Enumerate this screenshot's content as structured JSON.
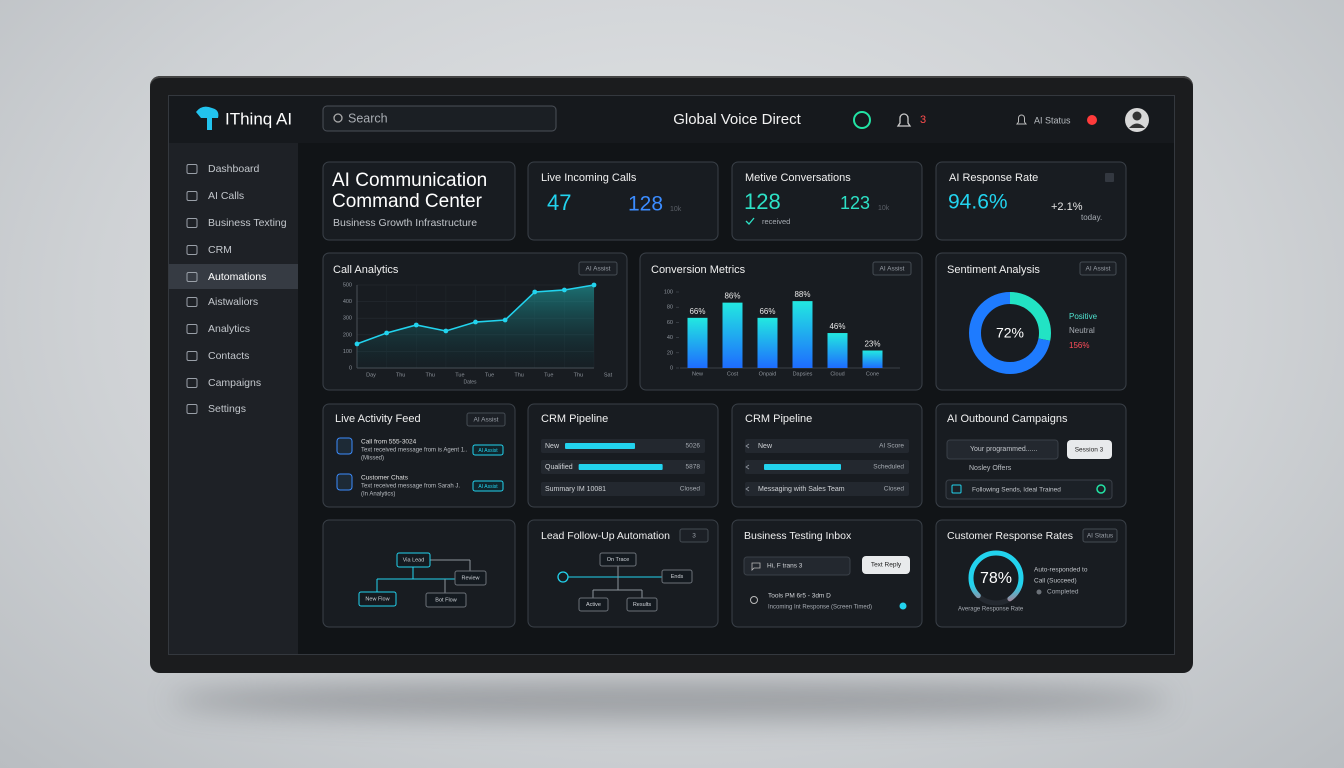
{
  "header": {
    "brand": "IThinq AI",
    "search": "Search",
    "title": "Global Voice Direct",
    "alerts": "3",
    "status": "AI Status"
  },
  "sidebar": {
    "items": [
      "Dashboard",
      "AI Calls",
      "Business Texting",
      "CRM",
      "Automations",
      "Aistwaliors",
      "Analytics",
      "Contacts",
      "Campaigns",
      "Settings"
    ],
    "active": 4
  },
  "hero": {
    "title": "AI Communication Command Center",
    "subtitle": "Business Growth Infrastructure"
  },
  "stats": [
    {
      "title": "Live Incoming Calls",
      "value": "47",
      "value2": "128",
      "note": "10k"
    },
    {
      "title": "Metive Conversations",
      "value": "128",
      "caption": "received",
      "value2": "123",
      "note": "10k"
    },
    {
      "title": "AI Response Rate",
      "value": "94.6%",
      "value2": "+2.1%",
      "note": "today."
    }
  ],
  "call_analytics": {
    "title": "Call Analytics",
    "badge": "AI Assist",
    "type": "line",
    "color": "#22d3ee",
    "categories": [
      "Day",
      "Thu",
      "Thu",
      "Tue",
      "Tue",
      "Thu",
      "Tue",
      "Thu",
      "Sat"
    ],
    "values": [
      145,
      211,
      259,
      223,
      277,
      289,
      458,
      470,
      500
    ],
    "ylim": [
      0,
      500
    ],
    "yticks": [
      0,
      100,
      200,
      300,
      400,
      500
    ],
    "xlabel": "Dates",
    "grid": true
  },
  "conversion": {
    "title": "Conversion Metrics",
    "badge": "AI Assist",
    "type": "bar",
    "categories": [
      "New",
      "Cost",
      "Onpaid",
      "Dapsies",
      "Cloud",
      "Cone"
    ],
    "values": [
      66,
      86,
      66,
      88,
      46,
      23
    ],
    "value_labels": [
      "66%",
      "86%",
      "66%",
      "88%",
      "46%",
      "23%"
    ],
    "ylim": [
      0,
      100
    ],
    "yticks": [
      0,
      20,
      40,
      60,
      80,
      100
    ]
  },
  "sentiment": {
    "title": "Sentiment Analysis",
    "badge": "AI Assist",
    "type": "pie",
    "categories": [
      "Positive",
      "Neutral"
    ],
    "values": [
      72,
      28
    ],
    "colors": [
      "#1e7bff",
      "#22e3c4"
    ],
    "center": "72%",
    "note": "156%"
  },
  "feed": {
    "title": "Live Activity Feed",
    "badge": "AI Assist",
    "items": [
      {
        "title": "Call from 555-3024",
        "text": "Text received message from is Agent 1..",
        "sub": "(Missed)",
        "tag": "AI Assist"
      },
      {
        "title": "Customer Chats",
        "text": "Text received message from Sarah J.",
        "sub": "(In Analytics)",
        "tag": "AI Assist"
      }
    ]
  },
  "pipelines": [
    {
      "title": "CRM Pipeline",
      "rows": [
        {
          "label": "New",
          "value": "5026",
          "progress": 50
        },
        {
          "label": "Qualified",
          "value": "5878",
          "progress": 60
        },
        {
          "label": "Summary IM 10081",
          "value": "Closed",
          "progress": null
        }
      ]
    },
    {
      "title": "CRM Pipeline",
      "rows": [
        {
          "label": "New",
          "value": "AI Score",
          "progress": null
        },
        {
          "label": null,
          "value": "Scheduled",
          "progress": 55
        },
        {
          "label": "Messaging with Sales Team",
          "value": "Closed",
          "progress": null
        }
      ]
    }
  ],
  "campaigns": {
    "title": "AI Outbound Campaigns",
    "input": "Your programmed......",
    "button": "Session 3",
    "label": "Nosley Offers",
    "row": "Following Sends, Ideal Trained"
  },
  "flow": {
    "nodes": [
      "Via Lead",
      "Review",
      "New Flow",
      "Bot Flow"
    ]
  },
  "followup": {
    "title": "Lead Follow-Up Automation",
    "badge": "3",
    "nodes": [
      "On Trace",
      "Ends",
      "Active",
      "Results"
    ]
  },
  "inbox": {
    "title": "Business Testing Inbox",
    "message": "Hi, F trans 3",
    "button": "Text Reply",
    "line1": "Tools PM 6r5 - 3dm D",
    "line2": "Incoming Int Response (Screen Timed)"
  },
  "response": {
    "title": "Customer Response Rates",
    "badge": "AI Status",
    "value": 78,
    "value_label": "78%",
    "note1": "Auto-responded to",
    "note2": "Call (Succeed)",
    "note3": "Completed",
    "caption": "Average Response Rate"
  }
}
